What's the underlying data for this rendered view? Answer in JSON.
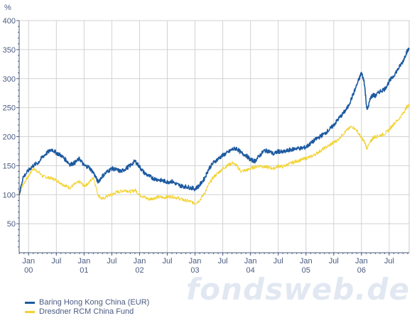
{
  "chart_data": {
    "type": "line",
    "title": "",
    "ylabel": "%",
    "ylim": [
      0,
      400
    ],
    "yticks": [
      50,
      100,
      150,
      200,
      250,
      300,
      350,
      400
    ],
    "xticks": [
      {
        "month": "Jan",
        "year": "00",
        "t": 0.0
      },
      {
        "month": "Jul",
        "year": "",
        "t": 0.5
      },
      {
        "month": "Jan",
        "year": "01",
        "t": 1.0
      },
      {
        "month": "Jul",
        "year": "",
        "t": 1.5
      },
      {
        "month": "Jan",
        "year": "02",
        "t": 2.0
      },
      {
        "month": "Jul",
        "year": "",
        "t": 2.5
      },
      {
        "month": "Jan",
        "year": "03",
        "t": 3.0
      },
      {
        "month": "Jul",
        "year": "",
        "t": 3.5
      },
      {
        "month": "Jan",
        "year": "04",
        "t": 4.0
      },
      {
        "month": "Jul",
        "year": "",
        "t": 4.5
      },
      {
        "month": "Jan",
        "year": "05",
        "t": 5.0
      },
      {
        "month": "Jul",
        "year": "",
        "t": 5.5
      },
      {
        "month": "Jan",
        "year": "06",
        "t": 6.0
      },
      {
        "month": "Jul",
        "year": "",
        "t": 6.5
      }
    ],
    "xlim": [
      -0.17,
      6.86
    ],
    "grid": true,
    "legend_position": "bottom-left",
    "series": [
      {
        "name": "Baring Hong Kong China (EUR)",
        "color": "#1e5aa0",
        "x": [
          -0.17,
          -0.1,
          0.0,
          0.08,
          0.17,
          0.25,
          0.33,
          0.42,
          0.5,
          0.58,
          0.67,
          0.75,
          0.83,
          0.92,
          1.0,
          1.08,
          1.17,
          1.25,
          1.33,
          1.42,
          1.5,
          1.58,
          1.67,
          1.75,
          1.83,
          1.92,
          2.0,
          2.08,
          2.17,
          2.25,
          2.33,
          2.42,
          2.5,
          2.58,
          2.67,
          2.75,
          2.83,
          2.92,
          3.0,
          3.08,
          3.17,
          3.25,
          3.33,
          3.42,
          3.5,
          3.58,
          3.67,
          3.75,
          3.83,
          3.92,
          4.0,
          4.08,
          4.17,
          4.25,
          4.33,
          4.42,
          4.5,
          4.58,
          4.67,
          4.75,
          4.83,
          4.92,
          5.0,
          5.08,
          5.17,
          5.25,
          5.33,
          5.42,
          5.5,
          5.58,
          5.67,
          5.75,
          5.83,
          5.92,
          6.0,
          6.05,
          6.1,
          6.17,
          6.21,
          6.25,
          6.33,
          6.42,
          6.5,
          6.58,
          6.67,
          6.75,
          6.81,
          6.86
        ],
        "y": [
          100,
          130,
          142,
          150,
          155,
          165,
          172,
          178,
          172,
          168,
          160,
          152,
          155,
          162,
          150,
          148,
          138,
          122,
          132,
          140,
          145,
          143,
          140,
          145,
          150,
          158,
          148,
          138,
          132,
          128,
          126,
          124,
          122,
          123,
          118,
          115,
          114,
          112,
          110,
          116,
          128,
          145,
          155,
          162,
          168,
          172,
          178,
          180,
          172,
          168,
          160,
          158,
          168,
          176,
          175,
          170,
          175,
          173,
          176,
          178,
          180,
          180,
          182,
          188,
          195,
          200,
          205,
          212,
          220,
          230,
          240,
          250,
          268,
          290,
          310,
          295,
          245,
          268,
          272,
          270,
          278,
          282,
          295,
          305,
          318,
          330,
          345,
          352
        ],
        "values_note_unit": "%"
      },
      {
        "name": "Dresdner RCM China Fund",
        "color": "#f2d230",
        "x": [
          -0.17,
          -0.1,
          0.0,
          0.08,
          0.17,
          0.25,
          0.33,
          0.42,
          0.5,
          0.58,
          0.67,
          0.75,
          0.83,
          0.92,
          1.0,
          1.08,
          1.17,
          1.25,
          1.33,
          1.42,
          1.5,
          1.58,
          1.67,
          1.75,
          1.83,
          1.92,
          2.0,
          2.08,
          2.17,
          2.25,
          2.33,
          2.42,
          2.5,
          2.58,
          2.67,
          2.75,
          2.83,
          2.92,
          3.0,
          3.08,
          3.17,
          3.25,
          3.33,
          3.42,
          3.5,
          3.58,
          3.67,
          3.75,
          3.83,
          3.92,
          4.0,
          4.08,
          4.17,
          4.25,
          4.33,
          4.42,
          4.5,
          4.58,
          4.67,
          4.75,
          4.83,
          4.92,
          5.0,
          5.08,
          5.17,
          5.25,
          5.33,
          5.42,
          5.5,
          5.58,
          5.67,
          5.75,
          5.83,
          5.92,
          6.0,
          6.05,
          6.1,
          6.17,
          6.21,
          6.25,
          6.33,
          6.42,
          6.5,
          6.58,
          6.67,
          6.75,
          6.81,
          6.86
        ],
        "y": [
          100,
          118,
          132,
          145,
          140,
          132,
          130,
          128,
          125,
          120,
          115,
          112,
          118,
          122,
          115,
          120,
          130,
          100,
          92,
          98,
          100,
          104,
          106,
          108,
          105,
          108,
          100,
          96,
          92,
          94,
          96,
          95,
          96,
          97,
          95,
          92,
          90,
          88,
          85,
          90,
          102,
          118,
          130,
          138,
          145,
          150,
          155,
          150,
          140,
          142,
          145,
          148,
          150,
          148,
          147,
          145,
          150,
          148,
          152,
          155,
          158,
          160,
          163,
          165,
          170,
          175,
          180,
          185,
          190,
          195,
          205,
          212,
          218,
          210,
          198,
          192,
          180,
          192,
          198,
          200,
          202,
          205,
          212,
          222,
          230,
          240,
          250,
          255
        ],
        "values_note_unit": "%"
      }
    ]
  },
  "legend": [
    {
      "label": "Baring Hong Kong China (EUR)",
      "color": "#1e5aa0"
    },
    {
      "label": "Dresdner RCM China Fund",
      "color": "#f2d230"
    }
  ],
  "watermark": "fondsweb.de"
}
